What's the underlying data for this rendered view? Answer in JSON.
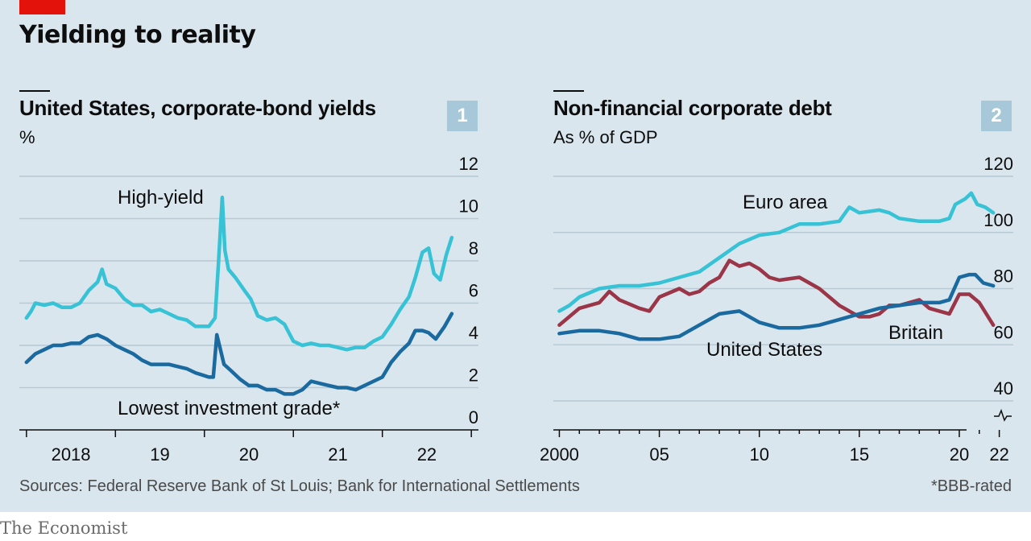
{
  "title": "Yielding to reality",
  "source": "Sources: Federal Reserve Bank of St Louis; Bank for International Settlements",
  "footnote": "*BBB-rated",
  "brand": "The Economist",
  "colors": {
    "light": "#37c2d5",
    "dark": "#1a6aa0",
    "red": "#9b3548",
    "grid": "#b8c9d4",
    "panel": "#dae6ee",
    "brand_red": "#e3120b"
  },
  "chart_data": [
    {
      "type": "line",
      "number": "1",
      "title": "United States, corporate-bond yields",
      "subtitle": "%",
      "y_ticks": [
        "0",
        "2",
        "4",
        "6",
        "8",
        "10",
        "12"
      ],
      "ylim": [
        0,
        12
      ],
      "x_ticks": [
        "2018",
        "19",
        "20",
        "21",
        "22"
      ],
      "grid": true,
      "annotations": [
        "High-yield",
        "Lowest investment grade*"
      ],
      "series": [
        {
          "name": "High-yield",
          "color": "light",
          "points": [
            [
              2018.0,
              5.3
            ],
            [
              2018.05,
              5.6
            ],
            [
              2018.1,
              6.0
            ],
            [
              2018.2,
              5.9
            ],
            [
              2018.3,
              6.0
            ],
            [
              2018.4,
              5.8
            ],
            [
              2018.5,
              5.8
            ],
            [
              2018.6,
              6.0
            ],
            [
              2018.7,
              6.6
            ],
            [
              2018.8,
              7.0
            ],
            [
              2018.85,
              7.6
            ],
            [
              2018.9,
              6.9
            ],
            [
              2019.0,
              6.7
            ],
            [
              2019.1,
              6.2
            ],
            [
              2019.2,
              5.9
            ],
            [
              2019.3,
              5.9
            ],
            [
              2019.4,
              5.6
            ],
            [
              2019.5,
              5.7
            ],
            [
              2019.6,
              5.5
            ],
            [
              2019.7,
              5.3
            ],
            [
              2019.8,
              5.2
            ],
            [
              2019.9,
              4.9
            ],
            [
              2020.05,
              4.9
            ],
            [
              2020.12,
              5.3
            ],
            [
              2020.16,
              8.0
            ],
            [
              2020.2,
              11.0
            ],
            [
              2020.23,
              8.5
            ],
            [
              2020.27,
              7.6
            ],
            [
              2020.35,
              7.2
            ],
            [
              2020.45,
              6.6
            ],
            [
              2020.52,
              6.2
            ],
            [
              2020.6,
              5.4
            ],
            [
              2020.7,
              5.2
            ],
            [
              2020.8,
              5.3
            ],
            [
              2020.9,
              5.0
            ],
            [
              2021.0,
              4.2
            ],
            [
              2021.1,
              4.0
            ],
            [
              2021.2,
              4.1
            ],
            [
              2021.3,
              4.0
            ],
            [
              2021.4,
              4.0
            ],
            [
              2021.5,
              3.9
            ],
            [
              2021.6,
              3.8
            ],
            [
              2021.7,
              3.9
            ],
            [
              2021.8,
              3.9
            ],
            [
              2021.9,
              4.2
            ],
            [
              2022.0,
              4.4
            ],
            [
              2022.1,
              5.0
            ],
            [
              2022.2,
              5.7
            ],
            [
              2022.3,
              6.3
            ],
            [
              2022.37,
              7.2
            ],
            [
              2022.45,
              8.4
            ],
            [
              2022.52,
              8.6
            ],
            [
              2022.58,
              7.4
            ],
            [
              2022.65,
              7.1
            ],
            [
              2022.72,
              8.3
            ],
            [
              2022.78,
              9.1
            ]
          ]
        },
        {
          "name": "Lowest investment grade*",
          "color": "dark",
          "points": [
            [
              2018.0,
              3.2
            ],
            [
              2018.1,
              3.6
            ],
            [
              2018.2,
              3.8
            ],
            [
              2018.3,
              4.0
            ],
            [
              2018.4,
              4.0
            ],
            [
              2018.5,
              4.1
            ],
            [
              2018.6,
              4.1
            ],
            [
              2018.7,
              4.4
            ],
            [
              2018.8,
              4.5
            ],
            [
              2018.9,
              4.3
            ],
            [
              2019.0,
              4.0
            ],
            [
              2019.1,
              3.8
            ],
            [
              2019.2,
              3.6
            ],
            [
              2019.3,
              3.3
            ],
            [
              2019.4,
              3.1
            ],
            [
              2019.5,
              3.1
            ],
            [
              2019.6,
              3.1
            ],
            [
              2019.7,
              3.0
            ],
            [
              2019.8,
              2.9
            ],
            [
              2019.9,
              2.7
            ],
            [
              2020.05,
              2.5
            ],
            [
              2020.1,
              2.5
            ],
            [
              2020.14,
              4.5
            ],
            [
              2020.18,
              3.8
            ],
            [
              2020.22,
              3.1
            ],
            [
              2020.3,
              2.8
            ],
            [
              2020.4,
              2.4
            ],
            [
              2020.5,
              2.1
            ],
            [
              2020.6,
              2.1
            ],
            [
              2020.7,
              1.9
            ],
            [
              2020.8,
              1.9
            ],
            [
              2020.9,
              1.7
            ],
            [
              2021.0,
              1.7
            ],
            [
              2021.1,
              1.9
            ],
            [
              2021.2,
              2.3
            ],
            [
              2021.3,
              2.2
            ],
            [
              2021.4,
              2.1
            ],
            [
              2021.5,
              2.0
            ],
            [
              2021.6,
              2.0
            ],
            [
              2021.7,
              1.9
            ],
            [
              2021.8,
              2.1
            ],
            [
              2021.9,
              2.3
            ],
            [
              2022.0,
              2.5
            ],
            [
              2022.1,
              3.2
            ],
            [
              2022.2,
              3.7
            ],
            [
              2022.3,
              4.1
            ],
            [
              2022.37,
              4.7
            ],
            [
              2022.45,
              4.7
            ],
            [
              2022.52,
              4.6
            ],
            [
              2022.6,
              4.3
            ],
            [
              2022.7,
              4.9
            ],
            [
              2022.78,
              5.5
            ]
          ]
        }
      ]
    },
    {
      "type": "line",
      "number": "2",
      "title": "Non-financial corporate debt",
      "subtitle": "As % of GDP",
      "y_ticks": [
        "40",
        "60",
        "80",
        "100",
        "120"
      ],
      "ylim": [
        40,
        120
      ],
      "x_ticks": [
        "2000",
        "05",
        "10",
        "15",
        "20",
        "22"
      ],
      "grid": true,
      "annotations": [
        "Euro area",
        "Britain",
        "United States"
      ],
      "series": [
        {
          "name": "Euro area",
          "color": "light",
          "points": [
            [
              2000.0,
              72
            ],
            [
              2000.5,
              74
            ],
            [
              2001,
              77
            ],
            [
              2002,
              80
            ],
            [
              2003,
              81
            ],
            [
              2004,
              81
            ],
            [
              2005,
              82
            ],
            [
              2006,
              84
            ],
            [
              2007,
              86
            ],
            [
              2008,
              91
            ],
            [
              2009,
              96
            ],
            [
              2010,
              99
            ],
            [
              2011,
              100
            ],
            [
              2012,
              103
            ],
            [
              2013,
              103
            ],
            [
              2014,
              104
            ],
            [
              2014.5,
              109
            ],
            [
              2015,
              107
            ],
            [
              2016,
              108
            ],
            [
              2016.5,
              107
            ],
            [
              2017,
              105
            ],
            [
              2018,
              104
            ],
            [
              2018.5,
              104
            ],
            [
              2019,
              104
            ],
            [
              2019.5,
              105
            ],
            [
              2019.8,
              110
            ],
            [
              2020.3,
              112
            ],
            [
              2020.6,
              114
            ],
            [
              2020.9,
              110
            ],
            [
              2021.3,
              109
            ],
            [
              2021.7,
              107
            ]
          ]
        },
        {
          "name": "Britain",
          "color": "red",
          "points": [
            [
              2000.0,
              67
            ],
            [
              2001,
              73
            ],
            [
              2002,
              75
            ],
            [
              2002.5,
              79
            ],
            [
              2003,
              76
            ],
            [
              2004,
              73
            ],
            [
              2004.5,
              72
            ],
            [
              2005,
              77
            ],
            [
              2006,
              80
            ],
            [
              2006.5,
              78
            ],
            [
              2007,
              79
            ],
            [
              2007.5,
              82
            ],
            [
              2008,
              84
            ],
            [
              2008.5,
              90
            ],
            [
              2009,
              88
            ],
            [
              2009.5,
              89
            ],
            [
              2010,
              87
            ],
            [
              2010.5,
              84
            ],
            [
              2011,
              83
            ],
            [
              2012,
              84
            ],
            [
              2013,
              80
            ],
            [
              2014,
              74
            ],
            [
              2014.5,
              72
            ],
            [
              2015,
              70
            ],
            [
              2015.5,
              70
            ],
            [
              2016,
              71
            ],
            [
              2016.5,
              74
            ],
            [
              2017,
              74
            ],
            [
              2018,
              76
            ],
            [
              2018.5,
              73
            ],
            [
              2019,
              72
            ],
            [
              2019.5,
              71
            ],
            [
              2020,
              78
            ],
            [
              2020.5,
              78
            ],
            [
              2021,
              75
            ],
            [
              2021.7,
              67
            ]
          ]
        },
        {
          "name": "United States",
          "color": "dark",
          "points": [
            [
              2000.0,
              64
            ],
            [
              2001,
              65
            ],
            [
              2002,
              65
            ],
            [
              2003,
              64
            ],
            [
              2004,
              62
            ],
            [
              2005,
              62
            ],
            [
              2006,
              63
            ],
            [
              2007,
              67
            ],
            [
              2008,
              71
            ],
            [
              2009,
              72
            ],
            [
              2010,
              68
            ],
            [
              2011,
              66
            ],
            [
              2012,
              66
            ],
            [
              2013,
              67
            ],
            [
              2014,
              69
            ],
            [
              2015,
              71
            ],
            [
              2016,
              73
            ],
            [
              2017,
              74
            ],
            [
              2018,
              75
            ],
            [
              2019,
              75
            ],
            [
              2019.5,
              76
            ],
            [
              2020,
              84
            ],
            [
              2020.5,
              85
            ],
            [
              2020.8,
              85
            ],
            [
              2021.2,
              82
            ],
            [
              2021.7,
              81
            ]
          ]
        }
      ]
    }
  ]
}
